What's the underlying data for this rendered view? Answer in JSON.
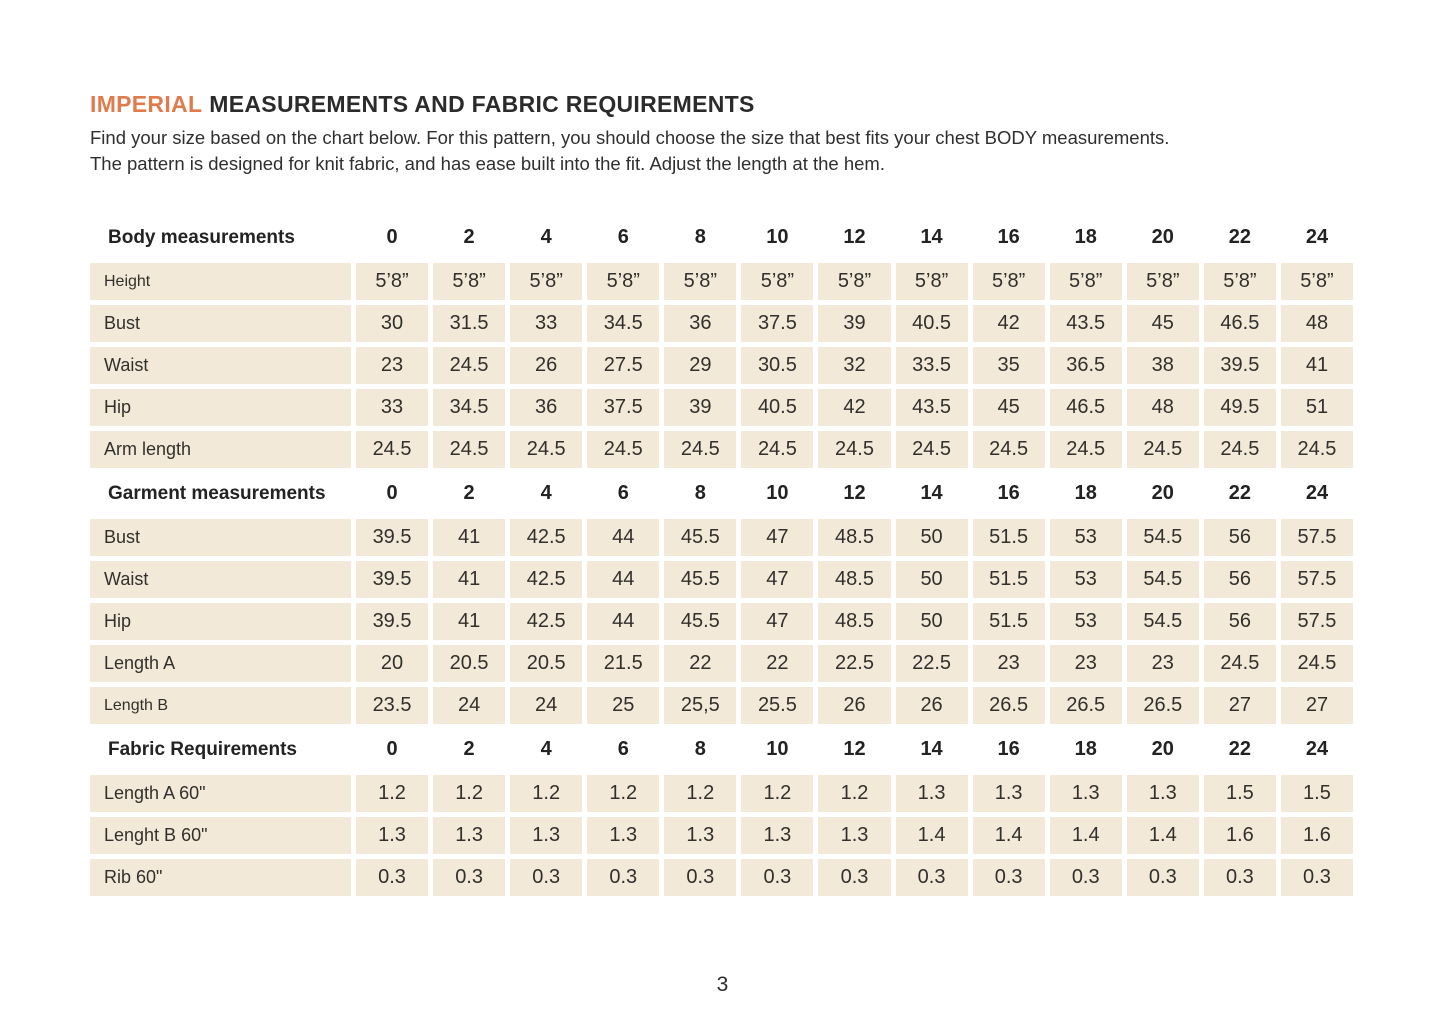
{
  "page": {
    "title": {
      "highlight": "IMPERIAL",
      "rest": "MEASUREMENTS AND FABRIC REQUIREMENTS"
    },
    "intro_line1": "Find your size based on the chart below. For this pattern, you should choose the size that best fits your chest BODY measurements.",
    "intro_line2": "The pattern is designed for knit fabric, and has ease built into the fit. Adjust the length at the hem.",
    "page_number": "3"
  },
  "colors": {
    "accent": "#df7b4c",
    "cell_background": "#f2e9d8",
    "text": "#2e2c29"
  },
  "chart_data": {
    "type": "table",
    "sizes": [
      "0",
      "2",
      "4",
      "6",
      "8",
      "10",
      "12",
      "14",
      "16",
      "18",
      "20",
      "22",
      "24"
    ],
    "sections": [
      {
        "header": "Body measurements",
        "rows": [
          {
            "label": "Height",
            "small": true,
            "values": [
              "5’8”",
              "5’8”",
              "5’8”",
              "5’8”",
              "5’8”",
              "5’8”",
              "5’8”",
              "5’8”",
              "5’8”",
              "5’8”",
              "5’8”",
              "5’8”",
              "5’8”"
            ]
          },
          {
            "label": "Bust",
            "values": [
              "30",
              "31.5",
              "33",
              "34.5",
              "36",
              "37.5",
              "39",
              "40.5",
              "42",
              "43.5",
              "45",
              "46.5",
              "48"
            ]
          },
          {
            "label": "Waist",
            "values": [
              "23",
              "24.5",
              "26",
              "27.5",
              "29",
              "30.5",
              "32",
              "33.5",
              "35",
              "36.5",
              "38",
              "39.5",
              "41"
            ]
          },
          {
            "label": "Hip",
            "values": [
              "33",
              "34.5",
              "36",
              "37.5",
              "39",
              "40.5",
              "42",
              "43.5",
              "45",
              "46.5",
              "48",
              "49.5",
              "51"
            ]
          },
          {
            "label": "Arm length",
            "values": [
              "24.5",
              "24.5",
              "24.5",
              "24.5",
              "24.5",
              "24.5",
              "24.5",
              "24.5",
              "24.5",
              "24.5",
              "24.5",
              "24.5",
              "24.5"
            ]
          }
        ]
      },
      {
        "header": "Garment measurements",
        "rows": [
          {
            "label": "Bust",
            "values": [
              "39.5",
              "41",
              "42.5",
              "44",
              "45.5",
              "47",
              "48.5",
              "50",
              "51.5",
              "53",
              "54.5",
              "56",
              "57.5"
            ]
          },
          {
            "label": "Waist",
            "values": [
              "39.5",
              "41",
              "42.5",
              "44",
              "45.5",
              "47",
              "48.5",
              "50",
              "51.5",
              "53",
              "54.5",
              "56",
              "57.5"
            ]
          },
          {
            "label": "Hip",
            "values": [
              "39.5",
              "41",
              "42.5",
              "44",
              "45.5",
              "47",
              "48.5",
              "50",
              "51.5",
              "53",
              "54.5",
              "56",
              "57.5"
            ]
          },
          {
            "label": "Length A",
            "values": [
              "20",
              "20.5",
              "20.5",
              "21.5",
              "22",
              "22",
              "22.5",
              "22.5",
              "23",
              "23",
              "23",
              "24.5",
              "24.5"
            ]
          },
          {
            "label": "Length B",
            "small": true,
            "values": [
              "23.5",
              "24",
              "24",
              "25",
              "25,5",
              "25.5",
              "26",
              "26",
              "26.5",
              "26.5",
              "26.5",
              "27",
              "27"
            ]
          }
        ]
      },
      {
        "header": "Fabric Requirements",
        "rows": [
          {
            "label": "Length A 60\"",
            "values": [
              "1.2",
              "1.2",
              "1.2",
              "1.2",
              "1.2",
              "1.2",
              "1.2",
              "1.3",
              "1.3",
              "1.3",
              "1.3",
              "1.5",
              "1.5"
            ]
          },
          {
            "label": "Lenght B 60\"",
            "values": [
              "1.3",
              "1.3",
              "1.3",
              "1.3",
              "1.3",
              "1.3",
              "1.3",
              "1.4",
              "1.4",
              "1.4",
              "1.4",
              "1.6",
              "1.6"
            ]
          },
          {
            "label": "Rib 60\"",
            "values": [
              "0.3",
              "0.3",
              "0.3",
              "0.3",
              "0.3",
              "0.3",
              "0.3",
              "0.3",
              "0.3",
              "0.3",
              "0.3",
              "0.3",
              "0.3"
            ]
          }
        ]
      }
    ]
  }
}
